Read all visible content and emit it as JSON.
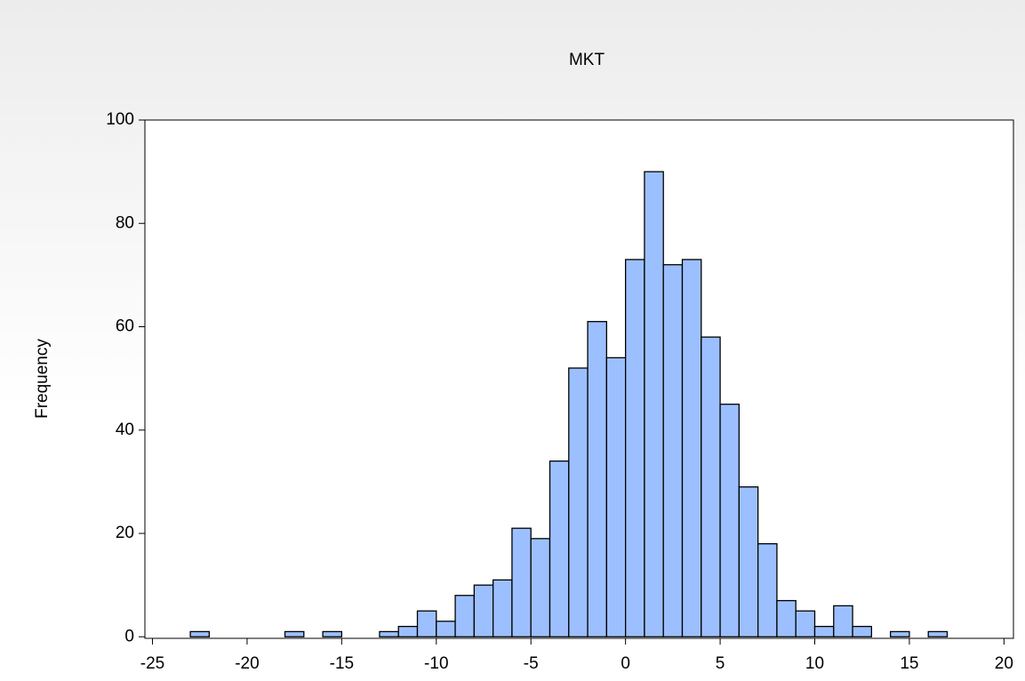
{
  "chart_data": {
    "type": "histogram",
    "title": "MKT",
    "y_label": "Frequency",
    "bins": [
      -23,
      -22,
      -21,
      -20,
      -19,
      -18,
      -17,
      -16,
      -15,
      -14,
      -13,
      -12,
      -11,
      -10,
      -9,
      -8,
      -7,
      -6,
      -5,
      -4,
      -3,
      -2,
      -1,
      0,
      1,
      2,
      3,
      4,
      5,
      6,
      7,
      8,
      9,
      10,
      11,
      12,
      13,
      14,
      15,
      16,
      17
    ],
    "counts": [
      1,
      0,
      0,
      0,
      0,
      1,
      0,
      1,
      0,
      0,
      1,
      2,
      5,
      3,
      8,
      10,
      11,
      21,
      19,
      34,
      52,
      61,
      54,
      73,
      90,
      72,
      73,
      58,
      45,
      29,
      18,
      7,
      5,
      2,
      6,
      2,
      0,
      1,
      0,
      1
    ],
    "color": "#9cc0ff",
    "xlim": [
      -25.4,
      20.5
    ],
    "xticks": [
      -25,
      -20,
      -15,
      -10,
      -5,
      0,
      5,
      10,
      15,
      20
    ],
    "ylim": [
      -0.3,
      100
    ],
    "yticks": [
      0,
      20,
      40,
      60,
      80,
      100
    ],
    "grid": false
  }
}
